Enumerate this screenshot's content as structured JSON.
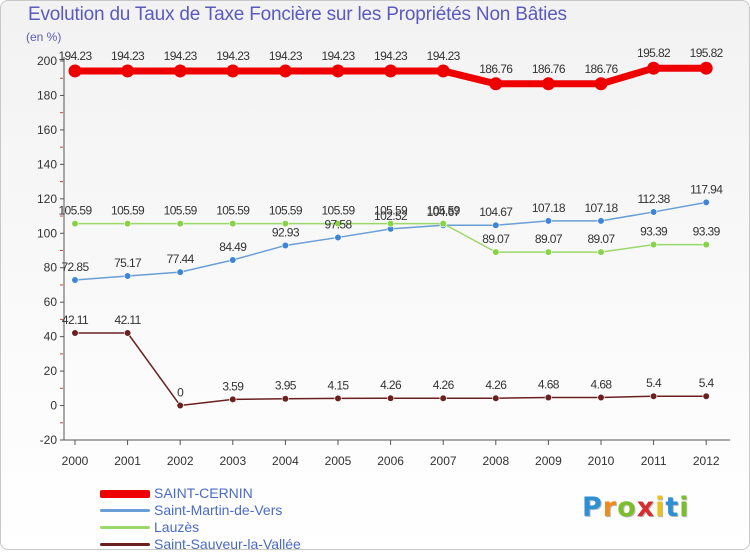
{
  "title": "Evolution du Taux de Taxe Foncière sur les Propriétés Non Bâties",
  "unit_label": "(en %)",
  "logo": {
    "text": "Proxiti",
    "colors": [
      "#2d8fd4",
      "#f08a1c",
      "#7cbd2c",
      "#d92c2c",
      "#e8c21a",
      "#2d8fd4",
      "#7cbd2c"
    ]
  },
  "chart_data": {
    "type": "line",
    "title": "Evolution du Taux de Taxe Foncière sur les Propriétés Non Bâties",
    "ylabel": "(en %)",
    "xlabel": "",
    "ylim": [
      -20,
      200
    ],
    "yticks": [
      -20,
      0,
      20,
      40,
      60,
      80,
      100,
      120,
      140,
      160,
      180,
      200
    ],
    "grid": false,
    "categories": [
      "2000",
      "2001",
      "2002",
      "2003",
      "2004",
      "2005",
      "2006",
      "2007",
      "2008",
      "2009",
      "2010",
      "2011",
      "2012"
    ],
    "series": [
      {
        "name": "SAINT-CERNIN",
        "color": "#ee0000",
        "emphasis": "thick",
        "values": [
          194.23,
          194.23,
          194.23,
          194.23,
          194.23,
          194.23,
          194.23,
          194.23,
          186.76,
          186.76,
          186.76,
          195.82,
          195.82
        ],
        "labels": [
          "194.23",
          "194.23",
          "194.23",
          "194.23",
          "194.23",
          "194.23",
          "194.23",
          "194.23",
          "186.76",
          "186.76",
          "186.76",
          "195.82",
          "195.82"
        ]
      },
      {
        "name": "Saint-Martin-de-Vers",
        "color": "#6a9ed6",
        "marker": "#3d85d8",
        "values": [
          72.85,
          75.17,
          77.44,
          84.49,
          92.93,
          97.58,
          102.52,
          104.67,
          104.67,
          107.18,
          107.18,
          112.38,
          117.94
        ],
        "labels": [
          "72.85",
          "75.17",
          "77.44",
          "84.49",
          "92.93",
          "97.58",
          "102.52",
          "104.67",
          "104.67",
          "107.18",
          "107.18",
          "112.38",
          "117.94"
        ]
      },
      {
        "name": "Lauzès",
        "color": "#9bd86a",
        "marker": "#86d248",
        "values": [
          105.59,
          105.59,
          105.59,
          105.59,
          105.59,
          105.59,
          105.59,
          105.59,
          89.07,
          89.07,
          89.07,
          93.39,
          93.39
        ],
        "labels": [
          "105.59",
          "105.59",
          "105.59",
          "105.59",
          "105.59",
          "105.59",
          "105.59",
          "105.59",
          "89.07",
          "89.07",
          "89.07",
          "93.39",
          "93.39"
        ]
      },
      {
        "name": "Saint-Sauveur-la-Vallée",
        "color": "#6b2020",
        "marker": "#6b2020",
        "values": [
          42.11,
          42.11,
          0,
          3.59,
          3.95,
          4.15,
          4.26,
          4.26,
          4.26,
          4.68,
          4.68,
          5.4,
          5.4
        ],
        "labels": [
          "42.11",
          "42.11",
          "0",
          "3.59",
          "3.95",
          "4.15",
          "4.26",
          "4.26",
          "4.26",
          "4.68",
          "4.68",
          "5.4",
          "5.4"
        ]
      }
    ]
  }
}
